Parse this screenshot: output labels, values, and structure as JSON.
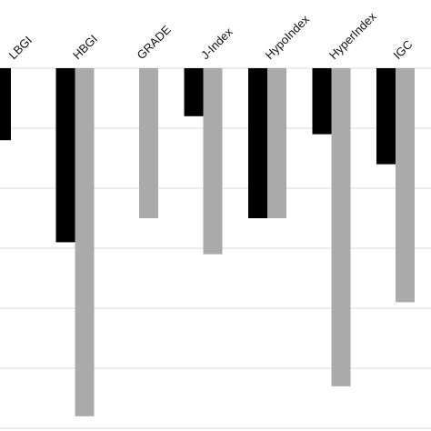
{
  "chart_data": {
    "type": "bar",
    "title": "",
    "xlabel": "",
    "ylabel": "",
    "categories": [
      "LBGI",
      "HBGI",
      "GRADE",
      "J-Index",
      "HypoIndex",
      "HyperIndex",
      "IGC"
    ],
    "series": [
      {
        "values": [
          -1.2,
          -2.9,
          0,
          -0.8,
          -2.5,
          -1.1,
          -1.6
        ]
      },
      {
        "values": [
          0,
          -5.8,
          -2.5,
          -3.1,
          -2.5,
          -5.3,
          -3.9
        ]
      }
    ],
    "ylim": [
      -6.0,
      0
    ],
    "grid": true,
    "legend": "none",
    "colors": [
      "#000000",
      "#aaaaaa"
    ]
  }
}
